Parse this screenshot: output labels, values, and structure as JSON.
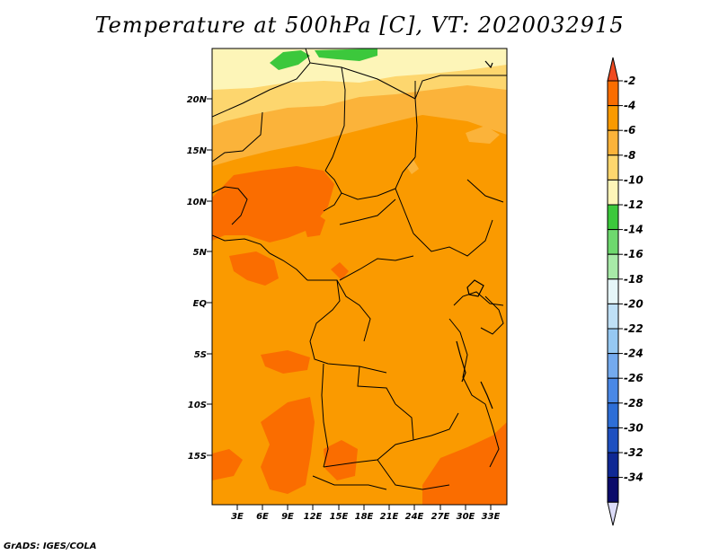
{
  "title": "Temperature at 500hPa [C], VT: 2020032915",
  "credit": "GrADS: IGES/COLA",
  "map": {
    "lat_labels": [
      "20N",
      "15N",
      "10N",
      "5N",
      "EQ",
      "5S",
      "10S",
      "15S"
    ],
    "lon_labels": [
      "3E",
      "6E",
      "9E",
      "12E",
      "15E",
      "18E",
      "21E",
      "24E",
      "27E",
      "30E",
      "33E"
    ]
  },
  "colorbar": {
    "labels": [
      "-2",
      "-4",
      "-6",
      "-8",
      "-10",
      "-12",
      "-14",
      "-16",
      "-18",
      "-20",
      "-22",
      "-24",
      "-26",
      "-28",
      "-30",
      "-32",
      "-34"
    ],
    "colors": [
      "#f04a20",
      "#fa6d00",
      "#fa9a00",
      "#fbb33a",
      "#fdd66e",
      "#fdf5b8",
      "#3cc83c",
      "#6ed86e",
      "#a8eaa8",
      "#e6f6f8",
      "#bfe0f6",
      "#96c8f2",
      "#74aaee",
      "#4a88e6",
      "#2e6ed6",
      "#1e50c0",
      "#0f2894",
      "#0a0a6a",
      "#dcdcf8"
    ]
  }
}
